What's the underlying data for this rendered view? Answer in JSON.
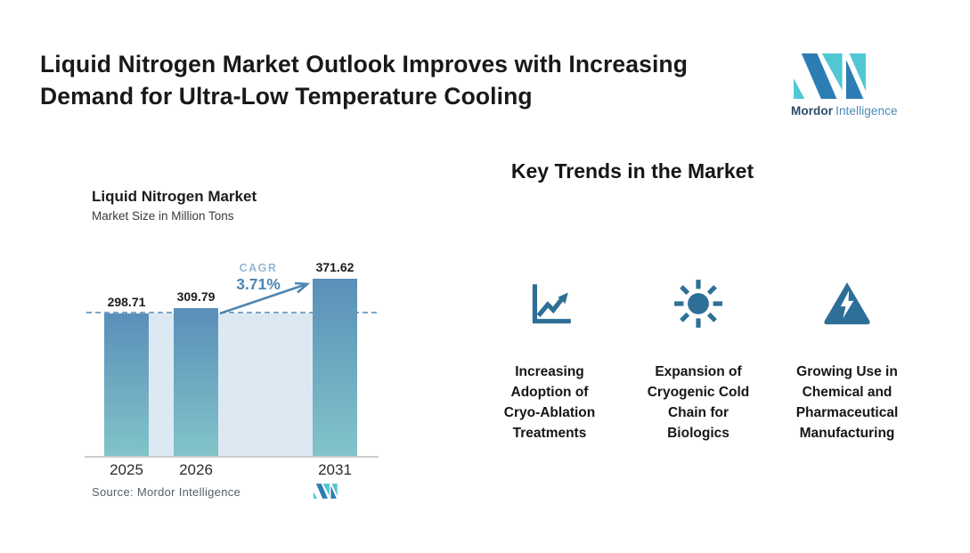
{
  "header": {
    "title": "Liquid Nitrogen Market Outlook Improves with Increasing\nDemand for Ultra-Low Temperature Cooling",
    "logo": {
      "brand_bold": "Mordor",
      "brand_light": "Intelligence",
      "colors": {
        "blue": "#2d7db5",
        "teal": "#4fc8d4"
      }
    }
  },
  "chart_data": {
    "type": "bar",
    "title": "Liquid Nitrogen Market",
    "subtitle": "Market Size in Million Tons",
    "categories": [
      "2025",
      "2026",
      "2031"
    ],
    "values": [
      298.71,
      309.79,
      371.62
    ],
    "value_labels": [
      "298.71",
      "309.79",
      "371.62"
    ],
    "cagr": {
      "label": "CAGR",
      "value": "3.71%"
    },
    "baseline_value": 298.71,
    "ylim": [
      0,
      380
    ],
    "grid": false,
    "legend": "none",
    "source": "Source: Mordor Intelligence",
    "colors": {
      "bar_gradient_top": "#5a8fb9",
      "bar_gradient_bottom": "#82c4c9",
      "area_fill": "#dde9f2",
      "dashed_line": "#7ba6c9",
      "arrow": "#4d86b2",
      "cagr_label_color": "#93b7d6",
      "cagr_value_color": "#4d86b2"
    }
  },
  "key_trends": {
    "heading": "Key Trends in the Market",
    "icon_color": "#2d6f96",
    "items": [
      {
        "icon": "line-chart-icon",
        "text": "Increasing\nAdoption of\nCryo-Ablation\nTreatments"
      },
      {
        "icon": "sun-icon",
        "text": "Expansion of\nCryogenic Cold\nChain for\nBiologics"
      },
      {
        "icon": "warning-lightning-icon",
        "text": "Growing Use in\nChemical and\nPharmaceutical\nManufacturing"
      }
    ]
  }
}
